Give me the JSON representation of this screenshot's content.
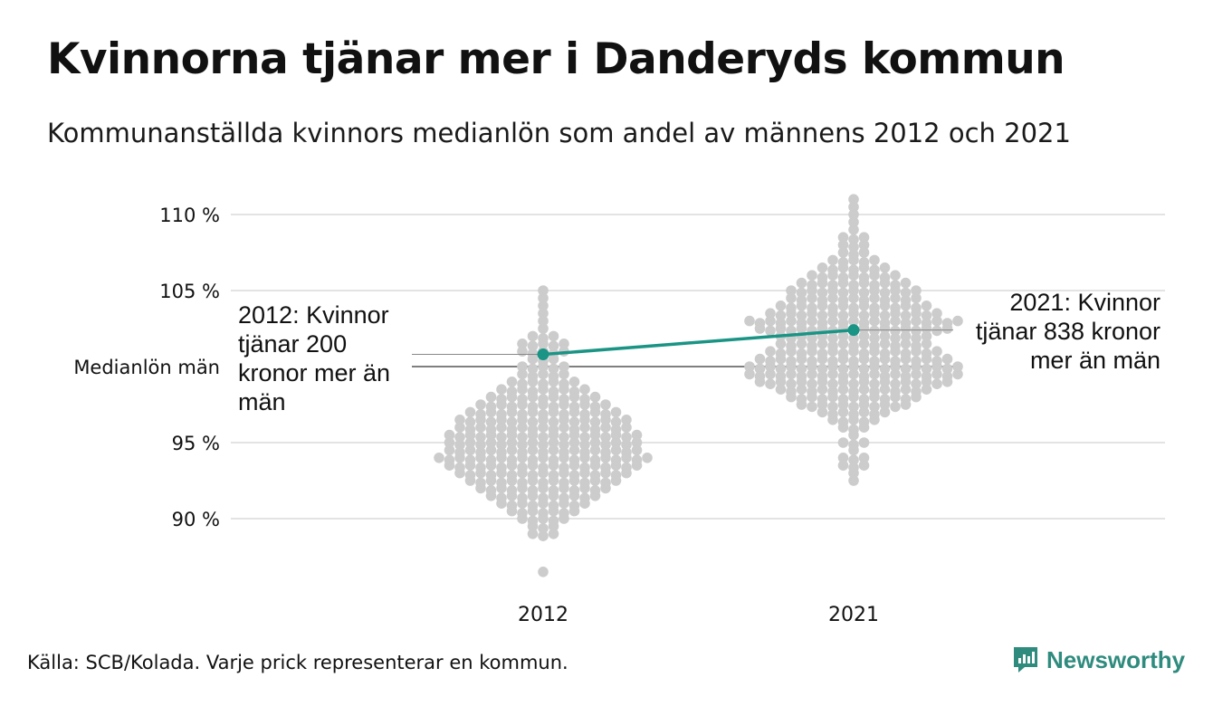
{
  "header": {
    "title": "Kvinnorna tjänar mer i Danderyds kommun",
    "subtitle": "Kommunanställda kvinnors medianlön som andel av männens 2012 och 2021"
  },
  "annotations": {
    "left": "2012: Kvinnor tjänar 200 kronor mer än män",
    "right": "2021: Kvinnor tjänar 838 kronor mer än män"
  },
  "footer": {
    "source": "Källa: SCB/Kolada. Varje prick representerar en kommun.",
    "brand": "Newsworthy"
  },
  "colors": {
    "dots": "#cccccc",
    "highlight": "#1a9485",
    "grid": "#e3e3e3",
    "reference": "#333333",
    "brand": "#2e8b7e"
  },
  "chart_data": {
    "type": "scatter",
    "subtype": "beeswarm",
    "categories": [
      "2012",
      "2021"
    ],
    "y_ticks": [
      {
        "value": 90,
        "label": "90 %"
      },
      {
        "value": 95,
        "label": "95 %"
      },
      {
        "value": 105,
        "label": "105 %"
      },
      {
        "value": 110,
        "label": "110 %"
      }
    ],
    "reference_line": {
      "value": 100,
      "label": "Medianlön män"
    },
    "ylim": [
      86,
      111.5
    ],
    "grid": true,
    "highlight": {
      "values": [
        100.8,
        102.4
      ]
    },
    "distributions": [
      {
        "category": "2012",
        "bins": [
          [
            86.5,
            1
          ],
          [
            89.0,
            3
          ],
          [
            89.5,
            3
          ],
          [
            90.0,
            5
          ],
          [
            90.5,
            7
          ],
          [
            91.0,
            9
          ],
          [
            91.5,
            11
          ],
          [
            92.0,
            13
          ],
          [
            92.5,
            15
          ],
          [
            93.0,
            17
          ],
          [
            93.5,
            19
          ],
          [
            94.0,
            21
          ],
          [
            94.5,
            19
          ],
          [
            95.0,
            19
          ],
          [
            95.5,
            19
          ],
          [
            96.0,
            17
          ],
          [
            96.5,
            17
          ],
          [
            97.0,
            15
          ],
          [
            97.5,
            13
          ],
          [
            98.0,
            11
          ],
          [
            98.5,
            9
          ],
          [
            99.0,
            7
          ],
          [
            99.5,
            5
          ],
          [
            100.0,
            5
          ],
          [
            100.5,
            3
          ],
          [
            101.0,
            5
          ],
          [
            101.5,
            5
          ],
          [
            102.0,
            3
          ],
          [
            102.5,
            1
          ],
          [
            103.0,
            1
          ],
          [
            103.5,
            1
          ],
          [
            104.0,
            1
          ],
          [
            104.5,
            1
          ],
          [
            105.0,
            1
          ]
        ]
      },
      {
        "category": "2021",
        "bins": [
          [
            92.5,
            1
          ],
          [
            93.0,
            1
          ],
          [
            93.5,
            3
          ],
          [
            94.0,
            3
          ],
          [
            94.5,
            1
          ],
          [
            95.0,
            3
          ],
          [
            95.5,
            1
          ],
          [
            96.0,
            3
          ],
          [
            96.5,
            5
          ],
          [
            97.0,
            7
          ],
          [
            97.5,
            11
          ],
          [
            98.0,
            13
          ],
          [
            98.5,
            15
          ],
          [
            99.0,
            19
          ],
          [
            99.5,
            21
          ],
          [
            100.0,
            21
          ],
          [
            100.5,
            19
          ],
          [
            101.0,
            17
          ],
          [
            101.5,
            15
          ],
          [
            102.0,
            15
          ],
          [
            102.5,
            19
          ],
          [
            103.0,
            21
          ],
          [
            103.5,
            17
          ],
          [
            104.0,
            15
          ],
          [
            104.5,
            13
          ],
          [
            105.0,
            13
          ],
          [
            105.5,
            11
          ],
          [
            106.0,
            9
          ],
          [
            106.5,
            7
          ],
          [
            107.0,
            5
          ],
          [
            107.5,
            3
          ],
          [
            108.0,
            3
          ],
          [
            108.5,
            3
          ],
          [
            109.0,
            1
          ],
          [
            109.5,
            1
          ],
          [
            110.0,
            1
          ],
          [
            110.5,
            1
          ],
          [
            111.0,
            1
          ]
        ]
      }
    ]
  }
}
